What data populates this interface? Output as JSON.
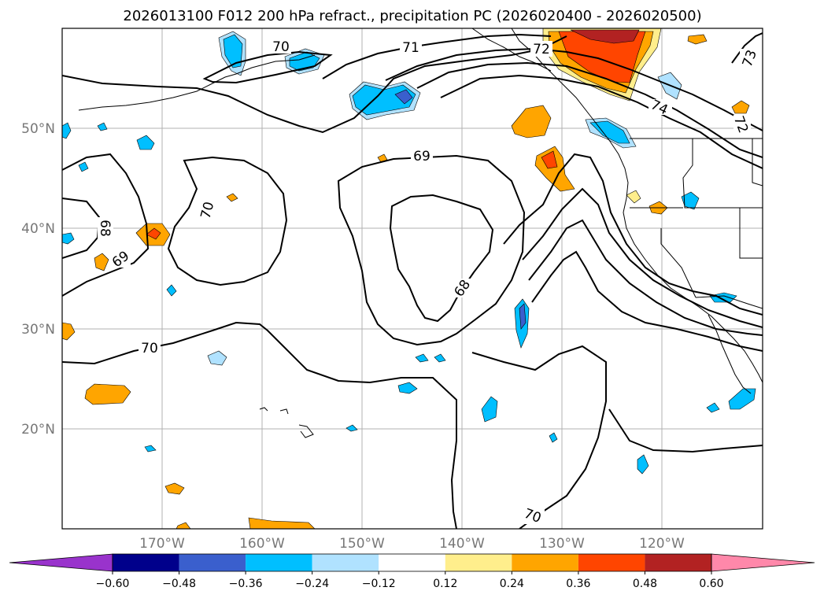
{
  "title": "2026013100 F012 200 hPa refract., precipitation PC (2026020400 - 2026020500)",
  "lon_ticks": [
    "170°W",
    "160°W",
    "150°W",
    "140°W",
    "130°W",
    "120°W"
  ],
  "lat_ticks": [
    "50°N",
    "40°N",
    "30°N",
    "20°N"
  ],
  "contour_labels": [
    "70",
    "71",
    "72",
    "73",
    "74",
    "72",
    "69",
    "70",
    "68",
    "69",
    "68",
    "70",
    "70"
  ],
  "colorbar": {
    "labels": [
      "−0.60",
      "−0.48",
      "−0.36",
      "−0.24",
      "−0.12",
      "0.12",
      "0.24",
      "0.36",
      "0.48",
      "0.60"
    ],
    "colors": [
      "#9933cc",
      "#00008b",
      "#3a5fcd",
      "#00bfff",
      "#b0e2ff",
      "#ffffff",
      "#ffee8c",
      "#ffa500",
      "#ff4500",
      "#b22222",
      "#ff88aa"
    ]
  },
  "palette": {
    "light_blue": "#b0e2ff",
    "blue": "#00bfff",
    "mid_blue": "#3a5fcd",
    "yellow": "#ffee8c",
    "orange": "#ffa500",
    "red_orange": "#ff4500",
    "dark_red": "#b22222"
  }
}
